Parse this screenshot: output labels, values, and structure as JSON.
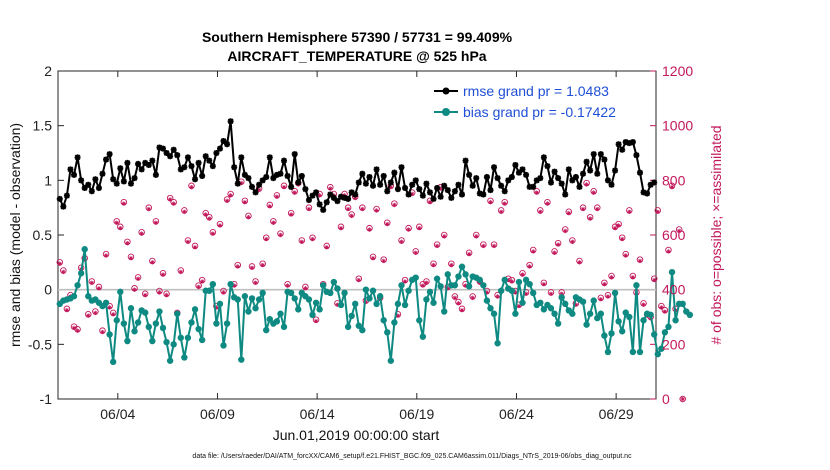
{
  "chart_data": {
    "type": "line",
    "title": "Southern Hemisphere 57390 / 57731 = 99.409%",
    "subtitle": "AIRCRAFT_TEMPERATURE @ 525 hPa",
    "xlabel": "Jun.01,2019 00:00:00 start",
    "ylabel": "rmse and bias (model - observation)",
    "ylabel_right": "# of obs: o=possible; ×=assimilated",
    "footer": "data file: /Users/raeder/DAI/ATM_forcXX/CAM6_setup/f.e21.FHIST_BGC.f09_025.CAM6assim.011/Diags_NTrS_2019-06/obs_diag_output.nc",
    "xlim": [
      1.0,
      31.0
    ],
    "ylim": [
      -1,
      2
    ],
    "ylim_right": [
      0,
      1200
    ],
    "x_ticks": [
      4,
      9,
      14,
      19,
      24,
      29
    ],
    "x_tick_labels": [
      "06/04",
      "06/09",
      "06/14",
      "06/19",
      "06/24",
      "06/29"
    ],
    "y_ticks": [
      -1,
      -0.5,
      0,
      0.5,
      1,
      1.5,
      2
    ],
    "y_tick_labels": [
      "-1",
      "-0.5",
      "0",
      "0.5",
      "1",
      "1.5",
      "2"
    ],
    "y_right_ticks": [
      0,
      200,
      400,
      600,
      800,
      1000,
      1200
    ],
    "y_right_tick_labels": [
      "0",
      "200",
      "400",
      "600",
      "800",
      "1000",
      "1200"
    ],
    "legend_position": "top-right",
    "series": [
      {
        "name": "rmse grand pr = 1.0483",
        "color": "#000000",
        "axis": "left",
        "values": [
          0.83,
          0.76,
          0.86,
          1.1,
          1.05,
          1.21,
          1.0,
          0.93,
          0.96,
          0.9,
          1.01,
          0.93,
          1.06,
          1.19,
          1.24,
          1.01,
          0.97,
          1.11,
          0.99,
          1.16,
          0.97,
          1.02,
          1.15,
          1.1,
          1.16,
          1.14,
          1.18,
          1.05,
          1.3,
          1.29,
          1.25,
          1.22,
          1.28,
          1.23,
          1.1,
          1.12,
          1.21,
          1.13,
          1.01,
          1.16,
          1.04,
          1.22,
          1.18,
          1.13,
          1.25,
          1.29,
          1.36,
          1.33,
          1.54,
          1.12,
          0.97,
          1.21,
          1.05,
          1.02,
          0.94,
          0.89,
          0.96,
          1.0,
          1.03,
          1.21,
          1.02,
          1.05,
          1.06,
          1.18,
          1.04,
          0.94,
          1.24,
          0.98,
          1.04,
          0.92,
          0.82,
          0.86,
          0.89,
          0.78,
          0.73,
          0.8,
          0.87,
          0.84,
          0.81,
          0.85,
          0.84,
          0.83,
          0.89,
          0.87,
          0.98,
          1.06,
          0.97,
          1.03,
          0.95,
          1.1,
          0.96,
          1.04,
          0.9,
          0.98,
          1.07,
          0.92,
          1.12,
          0.93,
          0.87,
          0.96,
          1.0,
          0.92,
          0.86,
          0.97,
          0.89,
          0.83,
          0.93,
          0.85,
          0.95,
          0.91,
          0.84,
          0.9,
          0.96,
          0.87,
          1.18,
          1.05,
          0.95,
          1.02,
          0.88,
          0.87,
          1.03,
          0.91,
          1.12,
          1.02,
          0.95,
          0.9,
          1.0,
          1.03,
          1.14,
          1.07,
          1.1,
          1.05,
          0.94,
          0.94,
          1.0,
          1.02,
          1.21,
          1.13,
          0.98,
          1.08,
          1.02,
          0.97,
          0.87,
          1.1,
          1.0,
          1.03,
          0.94,
          1.06,
          1.17,
          1.09,
          1.24,
          1.06,
          1.24,
          1.19,
          1.0,
          0.96,
          1.09,
          1.33,
          1.28,
          1.35,
          1.34,
          1.35,
          1.23,
          1.07,
          0.89,
          0.88,
          0.96,
          0.98
        ]
      },
      {
        "name": "bias grand pr = -0.17422",
        "color": "#0f8a82",
        "axis": "left",
        "values": [
          -0.13,
          -0.1,
          -0.09,
          -0.08,
          -0.06,
          0.04,
          0.15,
          0.37,
          -0.06,
          -0.1,
          -0.09,
          -0.12,
          -0.15,
          -0.12,
          -0.41,
          -0.66,
          -0.28,
          -0.02,
          -0.31,
          -0.47,
          -0.17,
          -0.38,
          -0.3,
          -0.19,
          -0.21,
          -0.34,
          -0.47,
          -0.31,
          -0.2,
          -0.35,
          -0.48,
          -0.65,
          -0.5,
          -0.22,
          -0.44,
          -0.62,
          -0.44,
          -0.3,
          -0.18,
          -0.36,
          -0.46,
          -0.01,
          -0.01,
          0.05,
          -0.31,
          -0.13,
          -0.51,
          -0.31,
          0.05,
          -0.07,
          -0.09,
          -0.64,
          -0.06,
          -0.2,
          -0.08,
          -0.17,
          -0.09,
          -0.03,
          -0.37,
          -0.27,
          -0.31,
          -0.29,
          -0.22,
          -0.34,
          -0.02,
          -0.03,
          -0.08,
          -0.18,
          -0.03,
          -0.06,
          -0.09,
          -0.23,
          -0.12,
          -0.18,
          0.04,
          -0.02,
          -0.03,
          0.07,
          0.01,
          -0.14,
          -0.03,
          -0.34,
          -0.24,
          -0.13,
          -0.33,
          -0.37,
          0.0,
          -0.08,
          -0.01,
          -0.13,
          -0.06,
          -0.28,
          -0.39,
          -0.65,
          -0.3,
          -0.13,
          0.04,
          -0.14,
          -0.01,
          0.09,
          0.11,
          -0.28,
          -0.43,
          -0.09,
          -0.02,
          -0.12,
          0.1,
          0.03,
          -0.2,
          0.14,
          0.04,
          0.04,
          0.12,
          0.21,
          0.14,
          0.03,
          0.12,
          0.11,
          0.09,
          0.04,
          -0.1,
          -0.17,
          -0.22,
          -0.49,
          -0.01,
          0.09,
          0.01,
          -0.01,
          -0.22,
          0.07,
          -0.12,
          0.09,
          0.05,
          -0.03,
          -0.14,
          -0.12,
          -0.18,
          -0.14,
          -0.17,
          -0.22,
          -0.31,
          -0.07,
          -0.13,
          -0.19,
          -0.22,
          -0.07,
          -0.09,
          -0.11,
          -0.32,
          -0.22,
          -0.1,
          -0.26,
          -0.22,
          -0.42,
          -0.57,
          -0.4,
          -0.03,
          -0.29,
          -0.38,
          -0.21,
          -0.25,
          -0.57,
          0.04,
          -0.57,
          -0.28,
          -0.22,
          -0.23,
          -0.41,
          -0.59,
          -0.54,
          -0.39,
          -0.34,
          0.16,
          -0.28,
          -0.13,
          -0.13,
          -0.2,
          -0.23
        ]
      },
      {
        "name": "# obs possible",
        "color": "#c2185b",
        "axis": "right",
        "marker": "circle",
        "values": [
          500,
          470,
          330,
          380,
          265,
          255,
          480,
          515,
          310,
          430,
          320,
          410,
          250,
          530,
          340,
          315,
          650,
          630,
          720,
          575,
          520,
          405,
          445,
          610,
          385,
          700,
          505,
          650,
          395,
          460,
          385,
          735,
          720,
          315,
          470,
          690,
          580,
          780,
          560,
          415,
          435,
          680,
          665,
          610,
          340,
          640,
          395,
          730,
          750,
          420,
          490,
          795,
          725,
          670,
          485,
          430,
          770,
          495,
          590,
          710,
          650,
          745,
          605,
          780,
          420,
          680,
          760,
          790,
          580,
          410,
          700,
          590,
          290,
          750,
          420,
          560,
          775,
          750,
          350,
          630,
          750,
          700,
          675,
          740,
          440,
          700,
          360,
          625,
          520,
          695,
          370,
          510,
          645,
          780,
          715,
          310,
          580,
          435,
          625,
          755,
          540,
          630,
          420,
          430,
          725,
          495,
          565,
          775,
          600,
          410,
          495,
          375,
          355,
          330,
          420,
          535,
          375,
          600,
          430,
          565,
          395,
          725,
          565,
          380,
          690,
          720,
          440,
          435,
          395,
          345,
          460,
          390,
          490,
          545,
          760,
          690,
          425,
          720,
          390,
          540,
          570,
          390,
          620,
          685,
          580,
          350,
          505,
          700,
          790,
          665,
          760,
          700,
          370,
          425,
          380,
          450,
          630,
          640,
          590,
          530,
          690,
          450,
          390,
          510,
          350,
          310,
          300,
          440,
          690,
          340,
          325,
          545,
          780,
          330,
          620,
          0
        ]
      },
      {
        "name": "# obs assimilated",
        "color": "#c2185b",
        "axis": "right",
        "marker": "star",
        "values": [
          495,
          465,
          325,
          375,
          260,
          250,
          475,
          510,
          305,
          425,
          315,
          405,
          245,
          525,
          335,
          310,
          645,
          625,
          715,
          570,
          515,
          400,
          440,
          605,
          380,
          695,
          500,
          645,
          390,
          455,
          380,
          730,
          715,
          310,
          465,
          685,
          575,
          775,
          555,
          410,
          430,
          675,
          660,
          605,
          335,
          635,
          390,
          725,
          745,
          415,
          485,
          790,
          720,
          665,
          480,
          425,
          765,
          490,
          585,
          705,
          645,
          740,
          600,
          775,
          415,
          675,
          755,
          785,
          575,
          405,
          695,
          585,
          285,
          745,
          415,
          555,
          770,
          745,
          345,
          625,
          745,
          695,
          670,
          735,
          435,
          695,
          355,
          620,
          515,
          690,
          365,
          505,
          640,
          775,
          710,
          305,
          575,
          430,
          620,
          750,
          535,
          625,
          415,
          425,
          720,
          490,
          560,
          770,
          595,
          405,
          490,
          370,
          350,
          325,
          415,
          530,
          370,
          595,
          425,
          560,
          390,
          720,
          560,
          375,
          685,
          715,
          435,
          430,
          390,
          340,
          455,
          385,
          485,
          540,
          755,
          685,
          420,
          715,
          385,
          535,
          565,
          385,
          615,
          680,
          575,
          345,
          500,
          695,
          785,
          660,
          755,
          695,
          365,
          420,
          375,
          445,
          625,
          635,
          585,
          525,
          685,
          445,
          385,
          505,
          345,
          305,
          295,
          435,
          685,
          335,
          320,
          540,
          775,
          325,
          615,
          0
        ]
      }
    ]
  }
}
